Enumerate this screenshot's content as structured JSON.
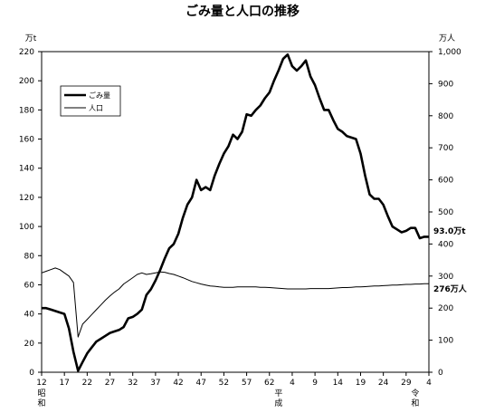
{
  "chart_data": {
    "type": "line",
    "title": "ごみ量と人口の推移",
    "left_unit": "万t",
    "right_unit": "万人",
    "ylim_left": [
      0,
      220
    ],
    "ylim_right": [
      0,
      1000
    ],
    "left_ticks": [
      0,
      20,
      40,
      60,
      80,
      100,
      120,
      140,
      160,
      180,
      200,
      220
    ],
    "right_ticks": [
      "0",
      "100",
      "200",
      "300",
      "400",
      "500",
      "600",
      "700",
      "800",
      "900",
      "1,000"
    ],
    "x_ticks": [
      "12",
      "17",
      "22",
      "27",
      "32",
      "37",
      "42",
      "47",
      "52",
      "57",
      "62",
      "4",
      "9",
      "14",
      "19",
      "24",
      "29",
      "4"
    ],
    "era_labels": [
      {
        "chars": [
          "昭",
          "和"
        ]
      },
      {
        "chars": [
          "平",
          "成"
        ]
      },
      {
        "chars": [
          "令",
          "和"
        ]
      }
    ],
    "legend": [
      {
        "label": "ごみ量",
        "style": "thick"
      },
      {
        "label": "人口",
        "style": "thin"
      }
    ],
    "end_labels": {
      "garbage": "93.0万t",
      "population": "276万人"
    },
    "years": [
      1937,
      1938,
      1939,
      1940,
      1941,
      1942,
      1943,
      1944,
      1945,
      1946,
      1947,
      1948,
      1949,
      1950,
      1951,
      1952,
      1953,
      1954,
      1955,
      1956,
      1957,
      1958,
      1959,
      1960,
      1961,
      1962,
      1963,
      1964,
      1965,
      1966,
      1967,
      1968,
      1969,
      1970,
      1971,
      1972,
      1973,
      1974,
      1975,
      1976,
      1977,
      1978,
      1979,
      1980,
      1981,
      1982,
      1983,
      1984,
      1985,
      1986,
      1987,
      1988,
      1989,
      1990,
      1991,
      1992,
      1993,
      1994,
      1995,
      1996,
      1997,
      1998,
      1999,
      2000,
      2001,
      2002,
      2003,
      2004,
      2005,
      2006,
      2007,
      2008,
      2009,
      2010,
      2011,
      2012,
      2013,
      2014,
      2015,
      2016,
      2017,
      2018,
      2019,
      2020,
      2021,
      2022
    ],
    "series": [
      {
        "name": "ごみ量",
        "axis": "left",
        "values": [
          44,
          44,
          43,
          42,
          41,
          40,
          30,
          14,
          1,
          7,
          13,
          17,
          21,
          23,
          25,
          27,
          28,
          29,
          31,
          37,
          38,
          40,
          43,
          53,
          57,
          63,
          70,
          78,
          85,
          88,
          95,
          106,
          115,
          120,
          132,
          125,
          127,
          125,
          135,
          143,
          150,
          155,
          163,
          160,
          165,
          177,
          176,
          180,
          183,
          188,
          192,
          200,
          207,
          215,
          218,
          210,
          207,
          210,
          214,
          203,
          197,
          188,
          180,
          180,
          173,
          167,
          165,
          162,
          161,
          160,
          150,
          135,
          122,
          119,
          119,
          115,
          107,
          100,
          98,
          96,
          97,
          99,
          99,
          92,
          93,
          93
        ]
      },
      {
        "name": "人口",
        "axis": "right",
        "values": [
          310,
          315,
          320,
          325,
          320,
          310,
          300,
          280,
          110,
          150,
          165,
          180,
          195,
          210,
          225,
          238,
          250,
          260,
          275,
          285,
          295,
          305,
          310,
          305,
          307,
          310,
          313,
          312,
          308,
          305,
          300,
          295,
          289,
          283,
          279,
          275,
          272,
          269,
          268,
          266,
          265,
          265,
          265,
          266,
          266,
          266,
          266,
          266,
          265,
          265,
          264,
          263,
          262,
          261,
          260,
          260,
          260,
          260,
          260,
          261,
          261,
          261,
          261,
          261,
          262,
          263,
          264,
          264,
          265,
          266,
          266,
          267,
          268,
          269,
          269,
          270,
          271,
          272,
          272,
          273,
          274,
          274,
          275,
          275,
          276,
          276
        ]
      }
    ]
  }
}
